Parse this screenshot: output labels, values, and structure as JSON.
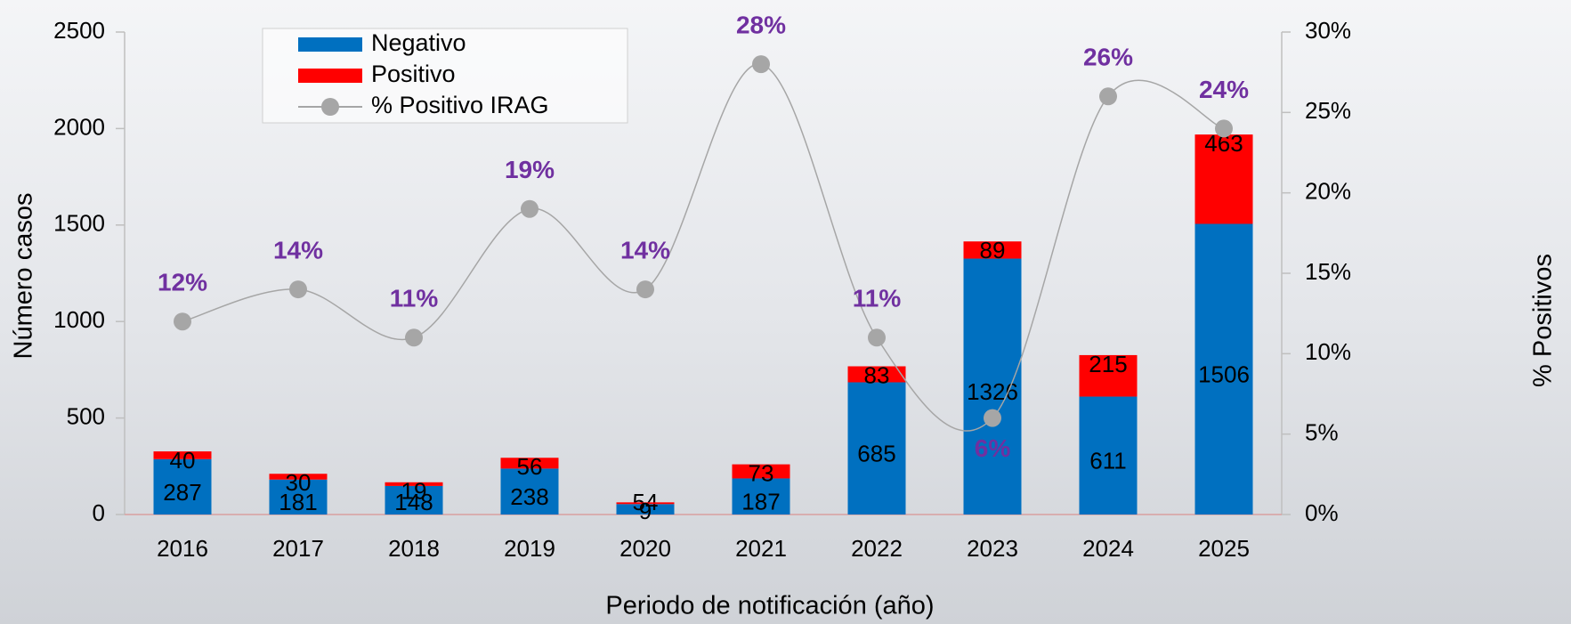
{
  "chart_data": {
    "type": "bar",
    "stacked": true,
    "x_label": "Periodo de notificación (año)",
    "y_label": "Número casos",
    "y2_label": "% Positivos",
    "categories": [
      "2016",
      "2017",
      "2018",
      "2019",
      "2020",
      "2021",
      "2022",
      "2023",
      "2024",
      "2025"
    ],
    "series": [
      {
        "name": "Negativo",
        "color": "#0070c0",
        "values": [
          287,
          181,
          148,
          238,
          54,
          187,
          685,
          1326,
          611,
          1506
        ]
      },
      {
        "name": "Positivo",
        "color": "#ff0000",
        "values": [
          40,
          30,
          19,
          56,
          9,
          73,
          83,
          89,
          215,
          463
        ]
      },
      {
        "name": "% Positivo IRAG",
        "type": "line",
        "axis": "y2",
        "color": "#a6a6a6",
        "label_color": "#7030a0",
        "values": [
          12,
          14,
          11,
          19,
          14,
          28,
          11,
          6,
          26,
          24
        ],
        "value_labels": [
          "12%",
          "14%",
          "11%",
          "19%",
          "14%",
          "28%",
          "11%",
          "6%",
          "26%",
          "24%"
        ]
      }
    ],
    "ylim": [
      0,
      2500
    ],
    "yticks": [
      0,
      500,
      1000,
      1500,
      2000,
      2500
    ],
    "y2lim": [
      0,
      30
    ],
    "y2ticks": [
      {
        "value": 0,
        "label": "0%"
      },
      {
        "value": 5,
        "label": "5%"
      },
      {
        "value": 10,
        "label": "10%"
      },
      {
        "value": 15,
        "label": "15%"
      },
      {
        "value": 20,
        "label": "20%"
      },
      {
        "value": 25,
        "label": "25%"
      },
      {
        "value": 30,
        "label": "30%"
      }
    ],
    "legend": "top-left"
  }
}
